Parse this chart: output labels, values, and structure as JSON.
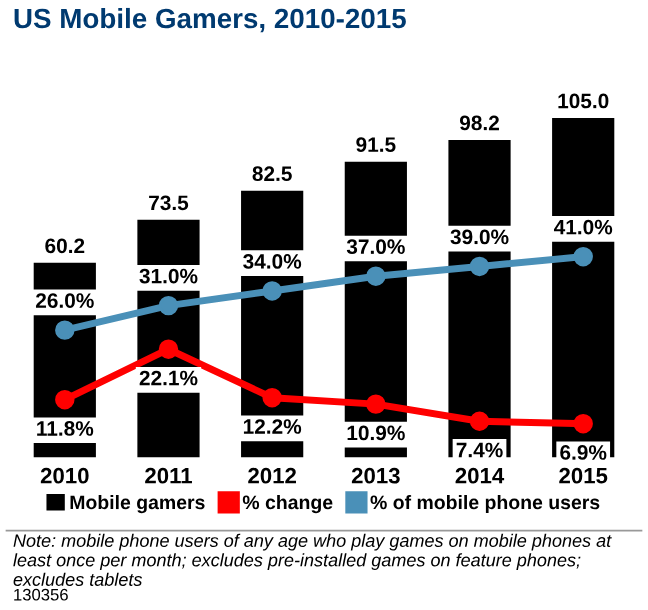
{
  "chart_data": {
    "type": "bar",
    "title": "US Mobile Gamers, 2010-2015",
    "categories": [
      "2010",
      "2011",
      "2012",
      "2013",
      "2014",
      "2015"
    ],
    "series": [
      {
        "name": "Mobile gamers",
        "color": "#000000",
        "values": [
          60.2,
          73.5,
          82.5,
          91.5,
          98.2,
          105.0
        ],
        "value_labels": [
          "60.2",
          "73.5",
          "82.5",
          "91.5",
          "98.2",
          "105.0"
        ]
      },
      {
        "name": "% change",
        "type": "line",
        "axis": "y2",
        "color": "#ff0000",
        "values": [
          11.8,
          22.1,
          12.2,
          10.9,
          7.4,
          6.9
        ],
        "value_labels": [
          "11.8%",
          "22.1%",
          "12.2%",
          "10.9%",
          "7.4%",
          "6.9%"
        ]
      },
      {
        "name": "% of mobile phone users",
        "type": "line",
        "axis": "y2",
        "color": "#4a90b8",
        "values": [
          26.0,
          31.0,
          34.0,
          37.0,
          39.0,
          41.0
        ],
        "value_labels": [
          "26.0%",
          "31.0%",
          "34.0%",
          "37.0%",
          "39.0%",
          "41.0%"
        ]
      }
    ],
    "marker": "circle",
    "line_style": "solid",
    "grid": false,
    "legend": "bottom",
    "tick_labels": "x",
    "annotations": [
      "Note: mobile phone users of any age who play games on mobile phones at least once per month; excludes pre-installed games on feature phones; excludes tablets",
      "130356"
    ]
  }
}
